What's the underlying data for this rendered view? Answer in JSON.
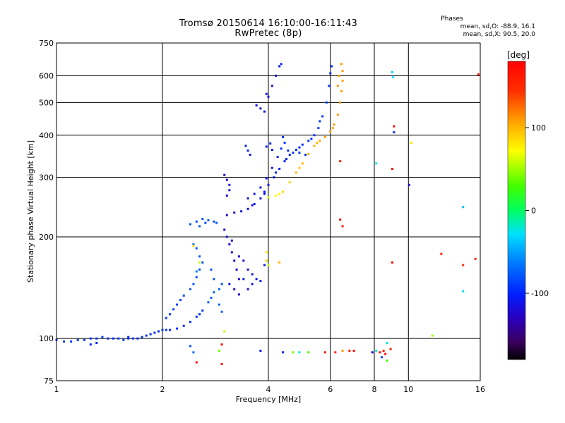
{
  "title": {
    "line1": "Tromsø 20150614 16:10:00-16:11:43",
    "line2": "RwPretec (8p)"
  },
  "phase_stats": {
    "header": "Phases",
    "o_mode": "mean, sd,O: -88.9, 16.1",
    "x_mode": "mean, sd,X:  90.5, 20.0"
  },
  "chart_data": {
    "type": "scatter",
    "title": "Tromsø 20150614 16:10:00-16:11:43",
    "subtitle": "RwPretec (8p)",
    "xlabel": "Frequency [MHz]",
    "ylabel": "Stationary phase Virtual Height [km]",
    "x_scale": "log",
    "y_scale": "log",
    "xlim": [
      1,
      16
    ],
    "ylim": [
      75,
      750
    ],
    "x_ticks": [
      1,
      2,
      4,
      6,
      8,
      10,
      16
    ],
    "y_ticks": [
      75,
      100,
      200,
      300,
      400,
      500,
      600,
      750
    ],
    "grid": true,
    "colorbar": {
      "label": "[deg]",
      "range": [
        -180,
        180
      ],
      "ticks": [
        -100,
        0,
        100
      ]
    },
    "series": [
      {
        "points": [
          [
            1.0,
            99,
            -95
          ],
          [
            1.05,
            98,
            -92
          ],
          [
            1.1,
            98,
            -90
          ],
          [
            1.15,
            99,
            -95
          ],
          [
            1.2,
            99,
            -93
          ],
          [
            1.25,
            100,
            -96
          ],
          [
            1.3,
            100,
            -92
          ],
          [
            1.35,
            101,
            -90
          ],
          [
            1.4,
            100,
            -94
          ],
          [
            1.45,
            100,
            -96
          ],
          [
            1.5,
            100,
            -92
          ],
          [
            1.55,
            99,
            -95
          ],
          [
            1.6,
            100,
            -93
          ],
          [
            1.65,
            100,
            -90
          ],
          [
            1.7,
            100,
            -95
          ],
          [
            1.75,
            101,
            -92
          ],
          [
            1.8,
            102,
            -94
          ],
          [
            1.85,
            103,
            -96
          ],
          [
            1.9,
            104,
            -93
          ],
          [
            1.95,
            105,
            -95
          ],
          [
            2.0,
            106,
            -90
          ],
          [
            2.05,
            106,
            -94
          ],
          [
            2.1,
            106,
            -96
          ],
          [
            2.2,
            107,
            -92
          ],
          [
            2.3,
            109,
            -95
          ],
          [
            2.4,
            112,
            -90
          ],
          [
            2.5,
            116,
            -93
          ],
          [
            2.55,
            118,
            -96
          ],
          [
            2.6,
            121,
            -94
          ],
          [
            2.7,
            128,
            -75
          ],
          [
            2.75,
            132,
            -72
          ],
          [
            2.8,
            137,
            -70
          ],
          [
            2.9,
            140,
            -72
          ],
          [
            2.95,
            145,
            -74
          ],
          [
            1.3,
            97,
            -98
          ],
          [
            1.6,
            101,
            -97
          ],
          [
            1.25,
            96,
            -100
          ]
        ]
      },
      {
        "points": [
          [
            2.05,
            115,
            -92
          ],
          [
            2.1,
            118,
            -90
          ],
          [
            2.15,
            122,
            -88
          ],
          [
            2.2,
            126,
            -86
          ],
          [
            2.25,
            130,
            -84
          ],
          [
            2.3,
            134,
            -82
          ],
          [
            2.4,
            140,
            -80
          ],
          [
            2.45,
            145,
            -80
          ],
          [
            2.5,
            152,
            -82
          ],
          [
            2.55,
            160,
            -80
          ],
          [
            2.6,
            168,
            -82
          ],
          [
            2.55,
            175,
            -78
          ],
          [
            2.5,
            185,
            -76
          ],
          [
            2.45,
            190,
            -75
          ],
          [
            2.9,
            126,
            -74
          ],
          [
            2.95,
            120,
            -72
          ],
          [
            2.8,
            150,
            -78
          ],
          [
            2.75,
            160,
            -80
          ]
        ]
      },
      {
        "points": [
          [
            2.4,
            218,
            -80
          ],
          [
            2.5,
            222,
            -82
          ],
          [
            2.6,
            226,
            -78
          ],
          [
            2.7,
            224,
            -76
          ],
          [
            2.8,
            222,
            -80
          ],
          [
            2.85,
            220,
            -78
          ],
          [
            2.55,
            215,
            -74
          ],
          [
            2.65,
            220,
            -84
          ]
        ]
      },
      {
        "points": [
          [
            3.0,
            210,
            -120
          ],
          [
            3.05,
            200,
            -118
          ],
          [
            3.1,
            190,
            -122
          ],
          [
            3.15,
            180,
            -115
          ],
          [
            3.2,
            170,
            -120
          ],
          [
            3.25,
            160,
            -118
          ],
          [
            3.3,
            150,
            -124
          ],
          [
            3.1,
            145,
            -116
          ],
          [
            3.2,
            140,
            -120
          ],
          [
            3.3,
            135,
            -122
          ],
          [
            3.4,
            150,
            -110
          ],
          [
            3.5,
            160,
            -108
          ],
          [
            3.6,
            155,
            -112
          ],
          [
            3.7,
            150,
            -110
          ],
          [
            3.8,
            148,
            -106
          ],
          [
            3.9,
            165,
            -104
          ],
          [
            3.5,
            140,
            -114
          ],
          [
            3.6,
            145,
            -112
          ],
          [
            3.4,
            170,
            -118
          ],
          [
            3.15,
            195,
            -124
          ],
          [
            3.3,
            175,
            -126
          ]
        ]
      },
      {
        "points": [
          [
            3.05,
            232,
            -120
          ],
          [
            3.2,
            236,
            -118
          ],
          [
            3.35,
            238,
            -116
          ],
          [
            3.5,
            242,
            -114
          ],
          [
            3.65,
            250,
            -112
          ],
          [
            3.8,
            260,
            -110
          ],
          [
            3.9,
            272,
            -108
          ],
          [
            4.0,
            285,
            -106
          ],
          [
            4.15,
            300,
            -104
          ],
          [
            4.3,
            318,
            -102
          ],
          [
            4.45,
            335,
            -100
          ],
          [
            4.6,
            350,
            -98
          ],
          [
            4.8,
            362,
            -96
          ],
          [
            5.0,
            375,
            -94
          ],
          [
            5.2,
            385,
            -92
          ],
          [
            5.4,
            400,
            -92
          ],
          [
            5.55,
            420,
            -90
          ],
          [
            5.7,
            455,
            -90
          ],
          [
            5.85,
            500,
            -90
          ],
          [
            5.95,
            560,
            -92
          ],
          [
            6.0,
            610,
            -95
          ],
          [
            6.05,
            640,
            -96
          ],
          [
            5.6,
            440,
            -94
          ],
          [
            5.3,
            390,
            -95
          ],
          [
            4.9,
            368,
            -98
          ],
          [
            4.5,
            340,
            -100
          ],
          [
            4.2,
            310,
            -105
          ],
          [
            3.9,
            268,
            -110
          ],
          [
            3.6,
            248,
            -114
          ]
        ]
      },
      {
        "points": [
          [
            3.5,
            260,
            -115
          ],
          [
            3.65,
            268,
            -112
          ],
          [
            3.8,
            280,
            -108
          ],
          [
            3.95,
            298,
            -104
          ],
          [
            4.1,
            320,
            -100
          ],
          [
            4.25,
            345,
            -98
          ],
          [
            4.35,
            365,
            -96
          ],
          [
            4.45,
            380,
            -96
          ],
          [
            4.55,
            360,
            -94
          ],
          [
            4.7,
            355,
            -92
          ],
          [
            4.9,
            355,
            -92
          ],
          [
            5.1,
            350,
            -94
          ],
          [
            4.4,
            395,
            -98
          ]
        ]
      },
      {
        "points": [
          [
            4.0,
            262,
            60
          ],
          [
            4.2,
            265,
            70
          ],
          [
            4.4,
            272,
            85
          ],
          [
            4.6,
            290,
            90
          ],
          [
            4.8,
            310,
            95
          ],
          [
            5.0,
            330,
            98
          ],
          [
            5.2,
            352,
            100
          ],
          [
            5.4,
            372,
            102
          ],
          [
            5.6,
            385,
            104
          ],
          [
            5.8,
            395,
            106
          ],
          [
            6.0,
            410,
            108
          ],
          [
            6.15,
            430,
            110
          ],
          [
            6.3,
            460,
            112
          ],
          [
            6.4,
            500,
            112
          ],
          [
            6.45,
            540,
            110
          ],
          [
            6.5,
            580,
            108
          ],
          [
            6.5,
            620,
            112
          ],
          [
            6.45,
            650,
            110
          ],
          [
            6.35,
            600,
            108
          ],
          [
            6.3,
            560,
            112
          ],
          [
            4.3,
            268,
            75
          ],
          [
            4.9,
            320,
            92
          ],
          [
            5.5,
            380,
            100
          ],
          [
            6.1,
            420,
            106
          ]
        ]
      },
      {
        "points": [
          [
            3.45,
            372,
            -104
          ],
          [
            3.5,
            360,
            -106
          ],
          [
            3.55,
            350,
            -108
          ],
          [
            3.95,
            370,
            -100
          ],
          [
            4.05,
            378,
            -102
          ],
          [
            4.1,
            362,
            -104
          ],
          [
            3.7,
            490,
            -112
          ],
          [
            3.8,
            480,
            -110
          ],
          [
            3.9,
            470,
            -108
          ],
          [
            3.95,
            530,
            -114
          ],
          [
            4.1,
            560,
            -110
          ],
          [
            4.2,
            600,
            -112
          ],
          [
            4.3,
            640,
            -108
          ],
          [
            4.35,
            650,
            -106
          ],
          [
            4.0,
            520,
            -112
          ]
        ]
      },
      {
        "points": [
          [
            3.0,
            305,
            -120
          ],
          [
            3.05,
            295,
            -118
          ],
          [
            3.1,
            285,
            -116
          ],
          [
            3.1,
            275,
            -114
          ],
          [
            3.05,
            265,
            -118
          ]
        ]
      },
      {
        "points": [
          [
            6.4,
            335,
            160
          ],
          [
            6.4,
            225,
            170
          ],
          [
            6.5,
            215,
            165
          ],
          [
            8.1,
            330,
            -20
          ],
          [
            9.0,
            615,
            -30
          ],
          [
            9.05,
            595,
            -25
          ],
          [
            9.1,
            425,
            170
          ],
          [
            9.1,
            408,
            -95
          ],
          [
            9.0,
            318,
            170
          ],
          [
            9.0,
            168,
            170
          ],
          [
            10.05,
            285,
            -130
          ],
          [
            10.2,
            380,
            80
          ],
          [
            12.4,
            178,
            155
          ],
          [
            14.3,
            245,
            -40
          ],
          [
            14.3,
            165,
            150
          ],
          [
            14.3,
            138,
            -30
          ],
          [
            15.5,
            172,
            150
          ],
          [
            15.8,
            605,
            170
          ],
          [
            11.7,
            102,
            50
          ],
          [
            8.7,
            97,
            -20
          ],
          [
            3.95,
            180,
            80
          ],
          [
            3.95,
            170,
            85
          ],
          [
            4.0,
            165,
            60
          ],
          [
            4.3,
            168,
            100
          ],
          [
            2.45,
            188,
            80
          ],
          [
            2.5,
            85,
            170
          ],
          [
            2.95,
            84,
            160
          ],
          [
            3.0,
            105,
            60
          ],
          [
            2.55,
            168,
            60
          ],
          [
            2.5,
            158,
            -60
          ],
          [
            2.4,
            95,
            -80
          ],
          [
            2.45,
            91,
            -70
          ],
          [
            2.95,
            96,
            170
          ],
          [
            2.9,
            92,
            40
          ],
          [
            3.8,
            92,
            -110
          ],
          [
            4.4,
            91,
            -100
          ],
          [
            4.9,
            91,
            -20
          ],
          [
            5.2,
            91,
            30
          ],
          [
            5.8,
            91,
            160
          ],
          [
            6.2,
            91,
            150
          ],
          [
            6.5,
            92,
            110
          ],
          [
            6.8,
            92,
            160
          ],
          [
            7.0,
            92,
            170
          ],
          [
            7.9,
            91,
            -120
          ],
          [
            8.1,
            92,
            -20
          ],
          [
            8.3,
            91,
            170
          ],
          [
            8.5,
            92,
            160
          ],
          [
            8.6,
            90,
            170
          ],
          [
            8.4,
            88,
            -80
          ],
          [
            8.7,
            86,
            30
          ],
          [
            8.9,
            93,
            160
          ],
          [
            4.7,
            91,
            40
          ]
        ]
      }
    ]
  }
}
